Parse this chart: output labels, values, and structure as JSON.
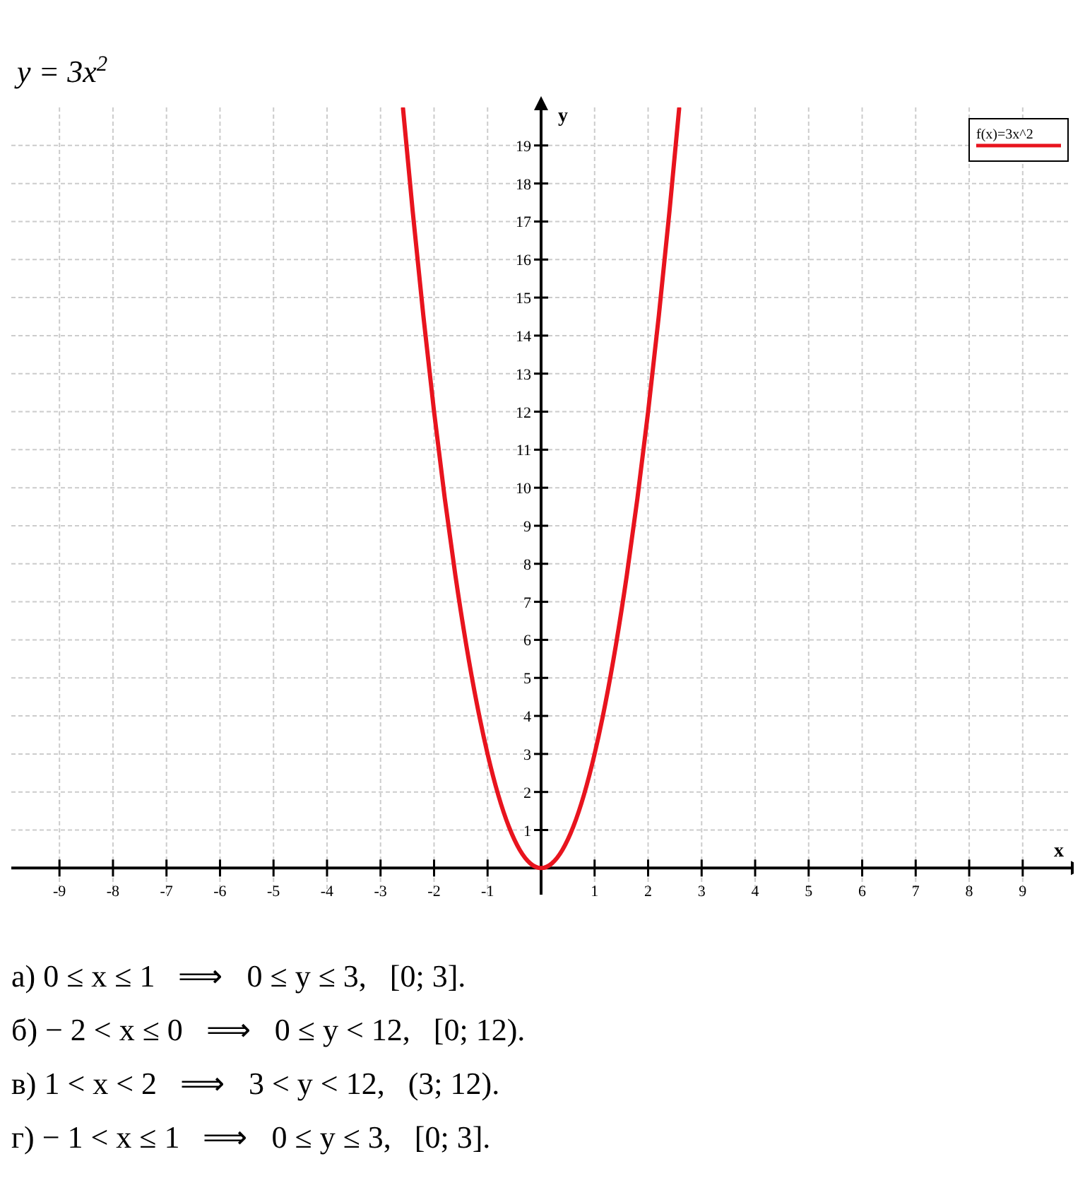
{
  "chart_data": {
    "type": "line",
    "title": "y = 3x$^{2}$",
    "xlabel": "x",
    "ylabel": "y",
    "x": [
      -2.58,
      -2.4,
      -2.2,
      -2,
      -1.8,
      -1.6,
      -1.4,
      -1.2,
      -1,
      -0.8,
      -0.6,
      -0.4,
      -0.2,
      0,
      0.2,
      0.4,
      0.6,
      0.8,
      1,
      1.2,
      1.4,
      1.6,
      1.8,
      2,
      2.2,
      2.4,
      2.58
    ],
    "series": [
      {
        "name": "f(x)=3x^2",
        "color": "#e8141e",
        "values": [
          19.97,
          17.28,
          14.52,
          12,
          9.72,
          7.68,
          5.88,
          4.32,
          3,
          1.92,
          1.08,
          0.48,
          0.12,
          0,
          0.12,
          0.48,
          1.08,
          1.92,
          3,
          4.32,
          5.88,
          7.68,
          9.72,
          12,
          14.52,
          17.28,
          19.97
        ]
      }
    ],
    "xlim": [
      -9.9,
      9.9
    ],
    "ylim": [
      -0.7,
      20
    ],
    "xticks": [
      -9,
      -8,
      -7,
      -6,
      -5,
      -4,
      -3,
      -2,
      -1,
      1,
      2,
      3,
      4,
      5,
      6,
      7,
      8,
      9
    ],
    "yticks": [
      1,
      2,
      3,
      4,
      5,
      6,
      7,
      8,
      9,
      10,
      11,
      12,
      13,
      14,
      15,
      16,
      17,
      18,
      19
    ],
    "grid": true,
    "legend": "top right",
    "marker": "none",
    "line_style": "solid",
    "annotations": [
      "а) 0 ≤ x ≤ 1   ⟹   0 ≤ y ≤ 3,   [0; 3].",
      "б) − 2 < x ≤ 0   ⟹   0 ≤ y < 12,   [0; 12).",
      "в) 1 < x < 2   ⟹   3 < y < 12,   (3; 12).",
      "г) − 1 < x ≤ 1   ⟹   0 ≤ y ≤ 3,   [0; 3]."
    ]
  }
}
